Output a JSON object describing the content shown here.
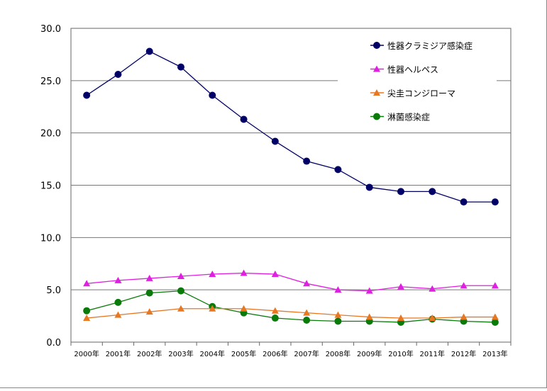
{
  "chart_data": {
    "type": "line",
    "categories": [
      "2000年",
      "2001年",
      "2002年",
      "2003年",
      "2004年",
      "2005年",
      "2006年",
      "2007年",
      "2008年",
      "2009年",
      "2010年",
      "2011年",
      "2012年",
      "2013年"
    ],
    "ylim": [
      0,
      30
    ],
    "yticks": [
      "0.0",
      "5.0",
      "10.0",
      "15.0",
      "20.0",
      "25.0",
      "30.0"
    ],
    "grid": true,
    "legend_position": "top-right",
    "series": [
      {
        "name": "性器クラミジア感染症",
        "color": "#000066",
        "marker": "circle",
        "values": [
          23.6,
          25.6,
          27.8,
          26.3,
          23.6,
          21.3,
          19.2,
          17.3,
          16.5,
          14.8,
          14.4,
          14.4,
          13.4,
          13.4
        ]
      },
      {
        "name": "性器ヘルペス",
        "color": "#e020e0",
        "marker": "triangle",
        "values": [
          5.6,
          5.9,
          6.1,
          6.3,
          6.5,
          6.6,
          6.5,
          5.6,
          5.0,
          4.9,
          5.3,
          5.1,
          5.4,
          5.4
        ]
      },
      {
        "name": "尖圭コンジローマ",
        "color": "#e87722",
        "marker": "triangle",
        "values": [
          2.3,
          2.6,
          2.9,
          3.2,
          3.2,
          3.2,
          3.0,
          2.8,
          2.6,
          2.4,
          2.3,
          2.3,
          2.4,
          2.4
        ]
      },
      {
        "name": "淋菌感染症",
        "color": "#0a7a0a",
        "marker": "circle",
        "values": [
          3.0,
          3.8,
          4.7,
          4.9,
          3.4,
          2.8,
          2.3,
          2.1,
          2.0,
          2.0,
          1.9,
          2.2,
          2.0,
          1.9
        ]
      }
    ]
  }
}
